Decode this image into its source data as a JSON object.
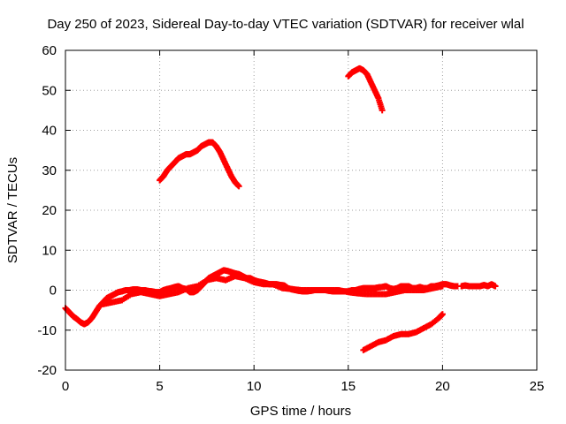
{
  "chart_data": {
    "type": "scatter",
    "title": "Day 250 of 2023, Sidereal Day-to-day VTEC variation (SDTVAR) for receiver wlal",
    "xlabel": "GPS time / hours",
    "ylabel": "SDTVAR / TECUs",
    "xlim": [
      0,
      25
    ],
    "ylim": [
      -20,
      60
    ],
    "xticks": [
      0,
      5,
      10,
      15,
      20,
      25
    ],
    "yticks": [
      -20,
      -10,
      0,
      10,
      20,
      30,
      40,
      50,
      60
    ],
    "grid": true,
    "marker": "+",
    "color": "#ff0000",
    "series": [
      {
        "name": "baseline",
        "x": [
          0.0,
          0.2,
          0.4,
          0.6,
          0.8,
          1.0,
          1.2,
          1.4,
          1.6,
          1.8,
          2.0,
          2.2,
          2.4,
          2.6,
          2.8,
          3.0,
          3.2,
          3.4,
          3.6,
          3.8,
          4.0,
          4.2,
          4.4,
          4.6,
          4.8,
          5.0,
          5.2,
          5.4,
          5.6,
          5.8,
          6.0,
          6.2,
          6.4,
          6.6,
          6.8,
          7.0,
          7.2,
          7.4,
          7.6,
          7.8,
          8.0,
          8.2,
          8.4,
          8.6,
          8.8,
          9.0,
          9.2,
          9.4,
          9.6,
          9.8,
          10.0,
          10.2,
          10.4,
          10.6,
          10.8,
          11.0,
          11.2,
          11.4,
          11.6,
          11.8,
          12.0,
          12.2,
          12.4,
          12.6,
          12.8,
          13.0,
          13.2,
          13.4,
          13.6,
          13.8,
          14.0,
          14.2,
          14.4,
          14.6,
          14.8,
          15.0,
          15.2,
          15.4,
          15.6,
          15.8,
          16.0,
          16.2,
          16.4,
          16.6,
          16.8,
          17.0,
          17.2,
          17.4,
          17.6,
          17.8,
          18.0,
          18.2,
          18.4,
          18.6,
          18.8,
          19.0,
          19.2,
          19.4,
          19.6,
          19.8,
          20.0,
          20.2,
          20.4,
          20.6,
          20.8
        ],
        "y": [
          -4.5,
          -5.5,
          -6.5,
          -7.2,
          -8.0,
          -8.5,
          -8.0,
          -7.0,
          -5.5,
          -4.0,
          -3.0,
          -2.0,
          -1.5,
          -1.0,
          -0.5,
          -0.3,
          0.0,
          0.0,
          0.2,
          0.2,
          0.0,
          0.0,
          -0.2,
          -0.3,
          -0.5,
          -0.5,
          0.0,
          0.3,
          0.5,
          0.8,
          1.0,
          0.5,
          0.3,
          -0.5,
          -0.5,
          0.0,
          1.0,
          2.0,
          3.0,
          3.5,
          4.0,
          4.5,
          5.0,
          4.8,
          4.5,
          4.2,
          4.0,
          3.5,
          3.0,
          3.0,
          2.5,
          2.2,
          2.0,
          1.8,
          1.5,
          1.5,
          1.5,
          1.3,
          1.2,
          0.5,
          0.2,
          0.0,
          -0.2,
          -0.3,
          -0.3,
          -0.2,
          0.0,
          0.0,
          0.0,
          0.0,
          -0.2,
          -0.3,
          -0.3,
          -0.3,
          -0.3,
          -0.3,
          0.0,
          0.0,
          0.3,
          0.5,
          0.5,
          0.5,
          0.5,
          0.7,
          0.8,
          1.0,
          0.5,
          0.3,
          0.5,
          1.0,
          1.0,
          1.0,
          0.5,
          0.5,
          0.8,
          0.5,
          0.5,
          1.0,
          1.0,
          1.2,
          1.5,
          1.5,
          1.2,
          1.0,
          1.0
        ]
      },
      {
        "name": "baseline-secondary",
        "x": [
          2.0,
          2.5,
          3.0,
          3.5,
          4.0,
          4.5,
          5.0,
          5.5,
          6.0,
          6.5,
          7.0,
          7.5,
          8.0,
          8.5,
          9.0,
          9.5,
          10.0,
          10.5,
          11.0,
          11.5,
          12.0,
          12.5,
          13.0,
          13.5,
          14.0,
          14.5,
          15.0,
          15.5,
          16.0,
          16.5,
          17.0,
          17.5,
          18.0,
          18.5,
          19.0,
          19.5,
          20.0
        ],
        "y": [
          -3.5,
          -3.0,
          -2.5,
          -1.0,
          -0.5,
          -1.0,
          -1.5,
          -1.0,
          -0.5,
          0.5,
          1.0,
          2.5,
          3.0,
          2.5,
          3.5,
          3.0,
          2.0,
          1.5,
          1.5,
          0.5,
          0.3,
          0.0,
          0.0,
          0.0,
          0.0,
          0.0,
          -0.5,
          -0.8,
          -1.0,
          -1.0,
          -1.0,
          -0.5,
          0.0,
          0.0,
          0.0,
          0.5,
          1.0
        ]
      },
      {
        "name": "tail-clusters",
        "x": [
          21.0,
          21.2,
          21.4,
          21.6,
          22.0,
          22.2,
          22.4,
          22.6,
          22.8
        ],
        "y": [
          1.0,
          1.2,
          1.0,
          1.0,
          1.0,
          1.3,
          1.0,
          1.5,
          1.0
        ]
      },
      {
        "name": "arc-1",
        "x": [
          5.0,
          5.2,
          5.4,
          5.6,
          5.8,
          6.0,
          6.2,
          6.4,
          6.6,
          6.8,
          7.0,
          7.2,
          7.4,
          7.6,
          7.8,
          8.0,
          8.2,
          8.4,
          8.6,
          8.8,
          9.0,
          9.2
        ],
        "y": [
          27.5,
          28.5,
          30.0,
          31.0,
          32.0,
          33.0,
          33.5,
          34.0,
          34.0,
          34.5,
          35.0,
          36.0,
          36.5,
          37.0,
          37.0,
          36.0,
          34.5,
          32.5,
          30.5,
          28.5,
          27.0,
          26.0
        ]
      },
      {
        "name": "arc-2",
        "x": [
          15.0,
          15.2,
          15.4,
          15.6,
          15.8,
          16.0,
          16.2,
          16.4,
          16.6,
          16.8
        ],
        "y": [
          53.5,
          54.5,
          55.0,
          55.5,
          55.0,
          54.0,
          52.0,
          50.0,
          48.0,
          45.0
        ]
      },
      {
        "name": "low-arc",
        "x": [
          15.8,
          16.2,
          16.6,
          17.0,
          17.4,
          17.8,
          18.2,
          18.6,
          19.0,
          19.4,
          19.8,
          20.0
        ],
        "y": [
          -15.0,
          -14.0,
          -13.0,
          -12.5,
          -11.5,
          -11.0,
          -11.0,
          -10.5,
          -9.5,
          -8.5,
          -7.0,
          -6.0
        ]
      }
    ]
  }
}
